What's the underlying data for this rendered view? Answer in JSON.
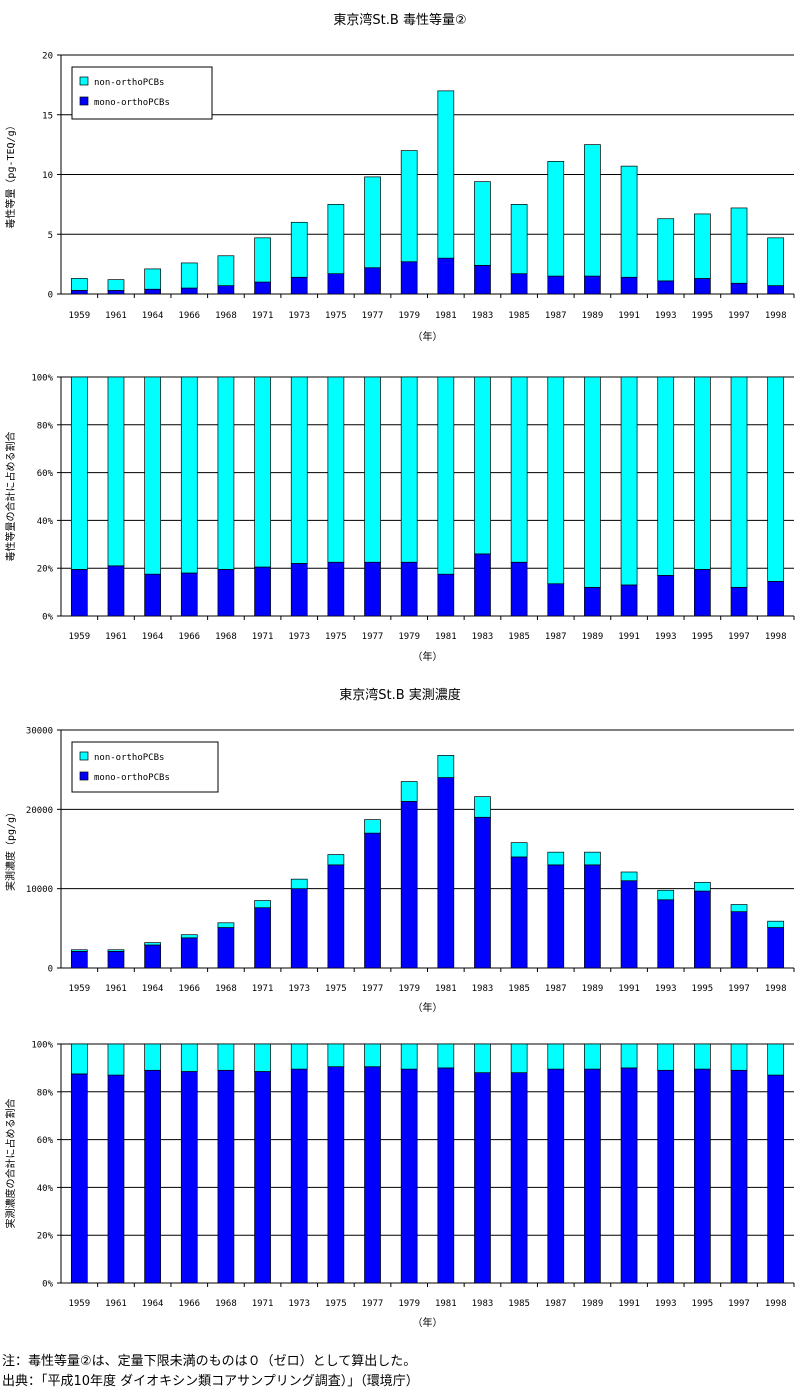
{
  "page": {
    "toxic_title": "東京湾St.B 毒性等量②",
    "conc_title": "東京湾St.B 実測濃度",
    "note": "注：毒性等量②は、定量下限未満のものは０（ゼロ）として算出した。",
    "source": "出典：「平成10年度 ダイオキシン類コアサンプリング調査）」（環境庁）"
  },
  "colors": {
    "non_ortho": "#00ffff",
    "mono_ortho": "#0000ff"
  },
  "chart_data": [
    {
      "type": "bar",
      "stacked": true,
      "title": "東京湾St.B 毒性等量②",
      "xlabel": "（年）",
      "ylabel": "毒性等量（pg-TEQ/g）",
      "ylim": [
        0,
        20
      ],
      "yticks": [
        "0",
        "5",
        "10",
        "15",
        "20"
      ],
      "gridlines": [
        5,
        10,
        15,
        20
      ],
      "legend": "top-left",
      "categories": [
        "1959",
        "1961",
        "1964",
        "1966",
        "1968",
        "1971",
        "1973",
        "1975",
        "1977",
        "1979",
        "1981",
        "1983",
        "1985",
        "1987",
        "1989",
        "1991",
        "1993",
        "1995",
        "1997",
        "1998"
      ],
      "series": [
        {
          "name": "mono-orthoPCBs",
          "values": [
            0.3,
            0.3,
            0.4,
            0.5,
            0.7,
            1.0,
            1.4,
            1.7,
            2.2,
            2.7,
            3.0,
            2.4,
            1.7,
            1.5,
            1.5,
            1.4,
            1.1,
            1.3,
            0.9,
            0.7
          ]
        },
        {
          "name": "non-orthoPCBs",
          "values": [
            1.0,
            0.9,
            1.7,
            2.1,
            2.5,
            3.7,
            4.6,
            5.8,
            7.6,
            9.3,
            14.0,
            7.0,
            5.8,
            9.6,
            11.0,
            9.3,
            5.2,
            5.4,
            6.3,
            4.0
          ]
        }
      ]
    },
    {
      "type": "bar",
      "stacked": true,
      "percent": true,
      "title": "",
      "xlabel": "（年）",
      "ylabel": "毒性等量の合計に占める割合",
      "ylim": [
        0,
        100
      ],
      "yticks": [
        "0%",
        "20%",
        "40%",
        "60%",
        "80%",
        "100%"
      ],
      "gridlines": [
        20,
        40,
        60,
        80,
        100
      ],
      "categories": [
        "1959",
        "1961",
        "1964",
        "1966",
        "1968",
        "1971",
        "1973",
        "1975",
        "1977",
        "1979",
        "1981",
        "1983",
        "1985",
        "1987",
        "1989",
        "1991",
        "1993",
        "1995",
        "1997",
        "1998"
      ],
      "series": [
        {
          "name": "mono-orthoPCBs",
          "values": [
            19.5,
            21,
            17.5,
            18,
            19.5,
            20.5,
            22,
            22.5,
            22.5,
            22.5,
            17.5,
            26,
            22.5,
            13.5,
            12,
            13,
            17,
            19.5,
            12,
            14.5
          ]
        },
        {
          "name": "non-orthoPCBs",
          "values": [
            80.5,
            79,
            82.5,
            82,
            80.5,
            79.5,
            78,
            77.5,
            77.5,
            77.5,
            82.5,
            74,
            77.5,
            86.5,
            88,
            87,
            83,
            80.5,
            88,
            85.5
          ]
        }
      ]
    },
    {
      "type": "bar",
      "stacked": true,
      "title": "東京湾St.B 実測濃度",
      "xlabel": "（年）",
      "ylabel": "実測濃度（pg/g）",
      "ylim": [
        0,
        30000
      ],
      "yticks": [
        "0",
        "10000",
        "20000",
        "30000"
      ],
      "gridlines": [
        10000,
        20000,
        30000
      ],
      "legend": "top-left",
      "categories": [
        "1959",
        "1961",
        "1964",
        "1966",
        "1968",
        "1971",
        "1973",
        "1975",
        "1977",
        "1979",
        "1981",
        "1983",
        "1985",
        "1987",
        "1989",
        "1991",
        "1993",
        "1995",
        "1997",
        "1998"
      ],
      "series": [
        {
          "name": "mono-orthoPCBs",
          "values": [
            2100,
            2100,
            2900,
            3800,
            5100,
            7600,
            10000,
            13000,
            17000,
            21000,
            24000,
            19000,
            14000,
            13000,
            13000,
            11000,
            8600,
            9700,
            7100,
            5100
          ]
        },
        {
          "name": "non-orthoPCBs",
          "values": [
            200,
            200,
            300,
            400,
            600,
            900,
            1200,
            1300,
            1700,
            2500,
            2800,
            2600,
            1800,
            1600,
            1600,
            1100,
            1200,
            1100,
            900,
            800
          ]
        }
      ]
    },
    {
      "type": "bar",
      "stacked": true,
      "percent": true,
      "title": "",
      "xlabel": "（年）",
      "ylabel": "実測濃度の合計に占める割合",
      "ylim": [
        0,
        100
      ],
      "yticks": [
        "0%",
        "20%",
        "40%",
        "60%",
        "80%",
        "100%"
      ],
      "gridlines": [
        20,
        40,
        60,
        80,
        100
      ],
      "categories": [
        "1959",
        "1961",
        "1964",
        "1966",
        "1968",
        "1971",
        "1973",
        "1975",
        "1977",
        "1979",
        "1981",
        "1983",
        "1985",
        "1987",
        "1989",
        "1991",
        "1993",
        "1995",
        "1997",
        "1998"
      ],
      "series": [
        {
          "name": "mono-orthoPCBs",
          "values": [
            87.5,
            87,
            89,
            88.5,
            89,
            88.5,
            89.5,
            90.5,
            90.5,
            89.5,
            90,
            88,
            88,
            89.5,
            89.5,
            90,
            89,
            89.5,
            89,
            87
          ]
        },
        {
          "name": "non-orthoPCBs",
          "values": [
            12.5,
            13,
            11,
            11.5,
            11,
            11.5,
            10.5,
            9.5,
            9.5,
            10.5,
            10,
            12,
            12,
            10.5,
            10.5,
            10,
            11,
            10.5,
            11,
            13
          ]
        }
      ]
    }
  ]
}
